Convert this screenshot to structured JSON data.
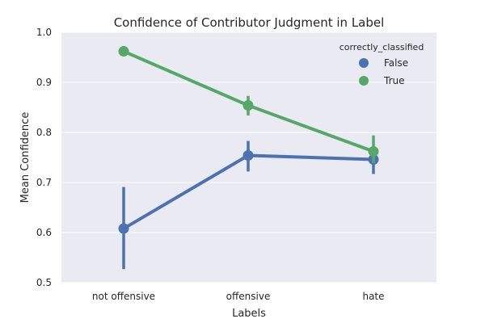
{
  "chart_data": {
    "type": "line",
    "title": "Confidence of Contributor Judgment in Label",
    "xlabel": "Labels",
    "ylabel": "Mean Confidence",
    "categories": [
      "not offensive",
      "offensive",
      "hate"
    ],
    "ylim": [
      0.5,
      1.0
    ],
    "yticks": [
      "0.5",
      "0.6",
      "0.7",
      "0.8",
      "0.9",
      "1.0"
    ],
    "grid": true,
    "legend": {
      "title": "correctly_classified",
      "placement": "top-right"
    },
    "series": [
      {
        "name": "False",
        "color": "#4c72b0",
        "values": [
          0.608,
          0.754,
          0.746
        ],
        "ci_low": [
          0.527,
          0.722,
          0.717
        ],
        "ci_high": [
          0.691,
          0.783,
          0.763
        ]
      },
      {
        "name": "True",
        "color": "#55a868",
        "values": [
          0.962,
          0.854,
          0.762
        ],
        "ci_low": [
          0.957,
          0.834,
          0.739
        ],
        "ci_high": [
          0.966,
          0.873,
          0.794
        ]
      }
    ],
    "background_color": "#eaeaf2",
    "grid_color": "#ffffff"
  }
}
